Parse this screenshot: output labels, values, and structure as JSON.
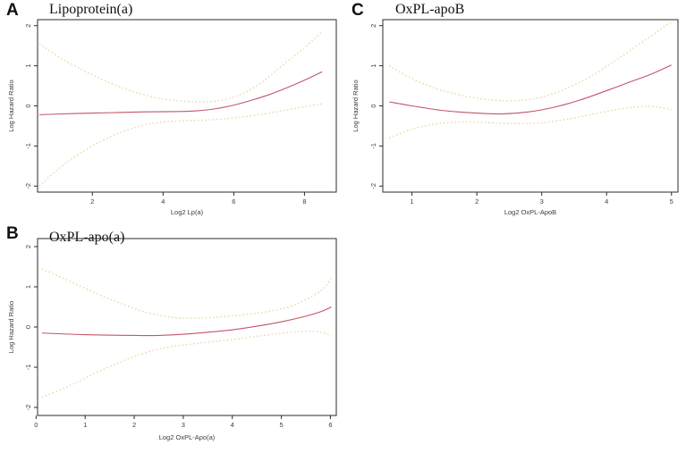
{
  "figure": {
    "background": "#ffffff",
    "colors": {
      "fit_line": "#c25668",
      "ci_line": "#eed8a4",
      "frame": "#2b2b2b",
      "tick_text": "#3d3d3d"
    }
  },
  "chart_data": [
    {
      "type": "line",
      "panel_label": "A",
      "title": "Lipoprotein(a)",
      "xlabel": "Log2 Lp(a)",
      "ylabel": "Log Hazard Ratio",
      "xlim": [
        0.45,
        8.9
      ],
      "ylim": [
        -2.15,
        2.15
      ],
      "xticks": [
        2,
        4,
        6,
        8
      ],
      "yticks": [
        -2,
        -1,
        0,
        1,
        2
      ],
      "grid": false,
      "legend": "none",
      "series": [
        {
          "name": "estimate",
          "style": "solid",
          "points": [
            [
              0.5,
              -0.22
            ],
            [
              1.5,
              -0.19
            ],
            [
              2.5,
              -0.17
            ],
            [
              3.5,
              -0.15
            ],
            [
              4.5,
              -0.14
            ],
            [
              5.0,
              -0.12
            ],
            [
              5.5,
              -0.07
            ],
            [
              6.0,
              0.02
            ],
            [
              6.5,
              0.14
            ],
            [
              7.0,
              0.28
            ],
            [
              7.5,
              0.45
            ],
            [
              8.0,
              0.64
            ],
            [
              8.5,
              0.85
            ]
          ]
        },
        {
          "name": "upper_ci",
          "style": "dashed",
          "points": [
            [
              0.5,
              1.55
            ],
            [
              1.0,
              1.25
            ],
            [
              1.5,
              1.0
            ],
            [
              2.0,
              0.77
            ],
            [
              2.5,
              0.57
            ],
            [
              3.0,
              0.4
            ],
            [
              3.5,
              0.27
            ],
            [
              4.0,
              0.17
            ],
            [
              4.5,
              0.12
            ],
            [
              5.0,
              0.1
            ],
            [
              5.5,
              0.12
            ],
            [
              6.0,
              0.22
            ],
            [
              6.5,
              0.42
            ],
            [
              7.0,
              0.73
            ],
            [
              7.5,
              1.1
            ],
            [
              8.0,
              1.45
            ],
            [
              8.5,
              1.85
            ]
          ]
        },
        {
          "name": "lower_ci",
          "style": "dashed",
          "points": [
            [
              0.5,
              -2.0
            ],
            [
              1.0,
              -1.6
            ],
            [
              1.5,
              -1.27
            ],
            [
              2.0,
              -1.0
            ],
            [
              2.5,
              -0.77
            ],
            [
              3.0,
              -0.6
            ],
            [
              3.5,
              -0.47
            ],
            [
              4.0,
              -0.4
            ],
            [
              4.5,
              -0.37
            ],
            [
              5.0,
              -0.36
            ],
            [
              5.5,
              -0.34
            ],
            [
              6.0,
              -0.3
            ],
            [
              6.5,
              -0.25
            ],
            [
              7.0,
              -0.18
            ],
            [
              7.5,
              -0.1
            ],
            [
              8.0,
              -0.02
            ],
            [
              8.5,
              0.05
            ]
          ]
        }
      ]
    },
    {
      "type": "line",
      "panel_label": "B",
      "title": "OxPL-apo(a)",
      "xlabel": "Log2 OxPL-Apo(a)",
      "ylabel": "Log Hazard Ratio",
      "xlim": [
        0.03,
        6.12
      ],
      "ylim": [
        -2.2,
        2.2
      ],
      "xticks": [
        0,
        1,
        2,
        3,
        4,
        5,
        6
      ],
      "yticks": [
        -2,
        -1,
        0,
        1,
        2
      ],
      "grid": false,
      "legend": "none",
      "series": [
        {
          "name": "estimate",
          "style": "solid",
          "points": [
            [
              0.12,
              -0.15
            ],
            [
              1.0,
              -0.19
            ],
            [
              2.0,
              -0.21
            ],
            [
              2.5,
              -0.21
            ],
            [
              3.0,
              -0.18
            ],
            [
              3.5,
              -0.13
            ],
            [
              4.0,
              -0.07
            ],
            [
              4.5,
              0.02
            ],
            [
              5.0,
              0.13
            ],
            [
              5.5,
              0.27
            ],
            [
              5.8,
              0.38
            ],
            [
              6.02,
              0.5
            ]
          ]
        },
        {
          "name": "upper_ci",
          "style": "dashed",
          "points": [
            [
              0.12,
              1.45
            ],
            [
              0.7,
              1.13
            ],
            [
              1.2,
              0.85
            ],
            [
              1.7,
              0.6
            ],
            [
              2.2,
              0.38
            ],
            [
              2.7,
              0.25
            ],
            [
              3.2,
              0.22
            ],
            [
              3.7,
              0.25
            ],
            [
              4.2,
              0.3
            ],
            [
              4.7,
              0.38
            ],
            [
              5.2,
              0.52
            ],
            [
              5.6,
              0.75
            ],
            [
              5.85,
              0.95
            ],
            [
              6.02,
              1.22
            ]
          ]
        },
        {
          "name": "lower_ci",
          "style": "dashed",
          "points": [
            [
              0.12,
              -1.75
            ],
            [
              0.7,
              -1.45
            ],
            [
              1.2,
              -1.15
            ],
            [
              1.7,
              -0.88
            ],
            [
              2.2,
              -0.65
            ],
            [
              2.7,
              -0.5
            ],
            [
              3.2,
              -0.42
            ],
            [
              3.7,
              -0.35
            ],
            [
              4.2,
              -0.28
            ],
            [
              4.7,
              -0.2
            ],
            [
              5.2,
              -0.13
            ],
            [
              5.6,
              -0.1
            ],
            [
              5.85,
              -0.14
            ],
            [
              6.02,
              -0.22
            ]
          ]
        }
      ]
    },
    {
      "type": "line",
      "panel_label": "C",
      "title": "OxPL-apoB",
      "xlabel": "Log2 OxPL-ApoB",
      "ylabel": "Log Hazard Ratio",
      "xlim": [
        0.55,
        5.1
      ],
      "ylim": [
        -2.15,
        2.15
      ],
      "xticks": [
        1,
        2,
        3,
        4,
        5
      ],
      "yticks": [
        -2,
        -1,
        0,
        1,
        2
      ],
      "grid": false,
      "legend": "none",
      "series": [
        {
          "name": "estimate",
          "style": "solid",
          "points": [
            [
              0.65,
              0.1
            ],
            [
              1.0,
              0.0
            ],
            [
              1.5,
              -0.12
            ],
            [
              2.0,
              -0.18
            ],
            [
              2.4,
              -0.2
            ],
            [
              2.8,
              -0.15
            ],
            [
              3.2,
              -0.03
            ],
            [
              3.6,
              0.15
            ],
            [
              4.0,
              0.38
            ],
            [
              4.4,
              0.62
            ],
            [
              4.7,
              0.8
            ],
            [
              5.0,
              1.02
            ]
          ]
        },
        {
          "name": "upper_ci",
          "style": "dashed",
          "points": [
            [
              0.65,
              1.0
            ],
            [
              1.0,
              0.68
            ],
            [
              1.4,
              0.42
            ],
            [
              1.8,
              0.25
            ],
            [
              2.2,
              0.15
            ],
            [
              2.6,
              0.13
            ],
            [
              3.0,
              0.22
            ],
            [
              3.4,
              0.45
            ],
            [
              3.8,
              0.78
            ],
            [
              4.2,
              1.2
            ],
            [
              4.6,
              1.65
            ],
            [
              5.0,
              2.1
            ]
          ]
        },
        {
          "name": "lower_ci",
          "style": "dashed",
          "points": [
            [
              0.65,
              -0.8
            ],
            [
              1.0,
              -0.58
            ],
            [
              1.4,
              -0.44
            ],
            [
              1.8,
              -0.4
            ],
            [
              2.2,
              -0.42
            ],
            [
              2.6,
              -0.44
            ],
            [
              3.0,
              -0.42
            ],
            [
              3.4,
              -0.33
            ],
            [
              3.8,
              -0.2
            ],
            [
              4.2,
              -0.08
            ],
            [
              4.5,
              -0.02
            ],
            [
              4.75,
              -0.02
            ],
            [
              5.0,
              -0.1
            ]
          ]
        }
      ]
    }
  ]
}
